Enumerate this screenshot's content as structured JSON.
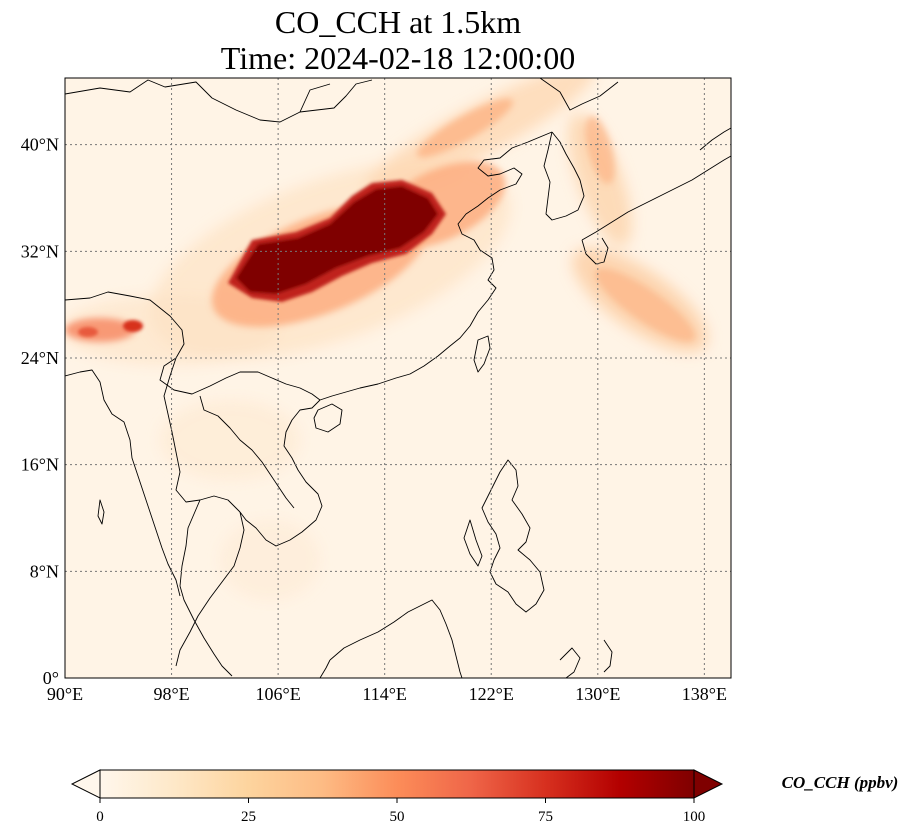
{
  "title_line_1": "CO_CCH at 1.5km",
  "title_line_2": "Time: 2024-02-18 12:00:00",
  "map": {
    "lon_range": [
      90,
      140
    ],
    "lat_range": [
      0,
      45
    ],
    "lon_ticks": [
      90,
      98,
      106,
      114,
      122,
      130,
      138
    ],
    "lon_tick_labels": [
      "90°E",
      "98°E",
      "106°E",
      "114°E",
      "122°E",
      "130°E",
      "138°E"
    ],
    "lat_ticks": [
      0,
      8,
      16,
      24,
      32,
      40
    ],
    "lat_tick_labels": [
      "0°",
      "8°N",
      "16°N",
      "24°N",
      "32°N",
      "40°N"
    ],
    "gridlines": true,
    "background_color": "#fff4e6"
  },
  "colorbar": {
    "label": "CO_CCH (ppbv)",
    "colormap": "OrRd",
    "range": [
      0,
      100
    ],
    "ticks": [
      0,
      25,
      50,
      75,
      100
    ],
    "tick_labels": [
      "0",
      "25",
      "50",
      "75",
      "100"
    ],
    "extend": "both",
    "colors": [
      "#fff7ec",
      "#fee8c8",
      "#fdd49e",
      "#fdbb84",
      "#fc8d59",
      "#ef6548",
      "#d7301f",
      "#b30000",
      "#7f0000"
    ]
  }
}
